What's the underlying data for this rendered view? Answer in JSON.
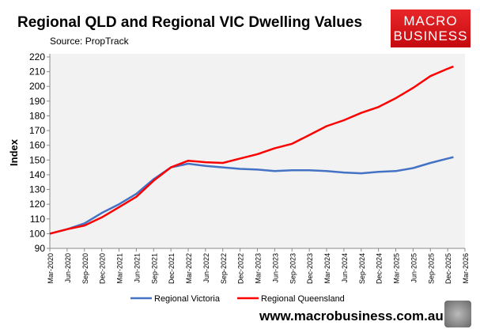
{
  "chart_data": {
    "type": "line",
    "title": "Regional QLD and Regional VIC Dwelling Values",
    "subtitle": "Source: PropTrack",
    "xlabel": "",
    "ylabel": "Index",
    "ylim": [
      90,
      220
    ],
    "yticks": [
      90,
      100,
      110,
      120,
      130,
      140,
      150,
      160,
      170,
      180,
      190,
      200,
      210,
      220
    ],
    "xticks": [
      "Mar-2020",
      "Jun-2020",
      "Sep-2020",
      "Dec-2020",
      "Mar-2021",
      "Jun-2021",
      "Sep-2021",
      "Dec-2021",
      "Mar-2022",
      "Jun-2022",
      "Sep-2022",
      "Dec-2022",
      "Mar-2023",
      "Jun-2023",
      "Sep-2023",
      "Dec-2023",
      "Mar-2024",
      "Jun-2024",
      "Sep-2024",
      "Dec-2024",
      "Mar-2025",
      "Jun-2025",
      "Sep-2025",
      "Dec-2025",
      "Mar-2026"
    ],
    "x": [
      "Mar-2020",
      "Jun-2020",
      "Sep-2020",
      "Dec-2020",
      "Mar-2021",
      "Jun-2021",
      "Sep-2021",
      "Dec-2021",
      "Mar-2022",
      "Jun-2022",
      "Sep-2022",
      "Dec-2022",
      "Mar-2023",
      "Jun-2023",
      "Sep-2023",
      "Dec-2023",
      "Mar-2024",
      "Jun-2024",
      "Sep-2024",
      "Dec-2024",
      "Mar-2025",
      "Jun-2025",
      "Sep-2025",
      "Dec-2025",
      "Jan-2026"
    ],
    "grid": false,
    "legend": "bottom",
    "series": [
      {
        "name": "Regional Victoria",
        "color": "#4472c4",
        "values": [
          100,
          103,
          107,
          114,
          120,
          127,
          137,
          145,
          147.5,
          146,
          145,
          144,
          143.5,
          142.5,
          143,
          143,
          142.5,
          141.5,
          141,
          142,
          142.5,
          144.5,
          148,
          151,
          152
        ]
      },
      {
        "name": "Regional Queensland",
        "color": "#ff0000",
        "values": [
          100,
          103,
          105.5,
          111,
          118,
          125,
          136,
          145,
          149.5,
          148.5,
          148,
          151,
          154,
          158,
          161,
          167,
          173,
          177,
          182,
          186,
          192,
          199,
          207,
          212,
          213.5
        ]
      }
    ]
  },
  "logo": {
    "line1": "MACRO",
    "line2": "BUSINESS"
  },
  "footer_url": "www.macrobusiness.com.au"
}
